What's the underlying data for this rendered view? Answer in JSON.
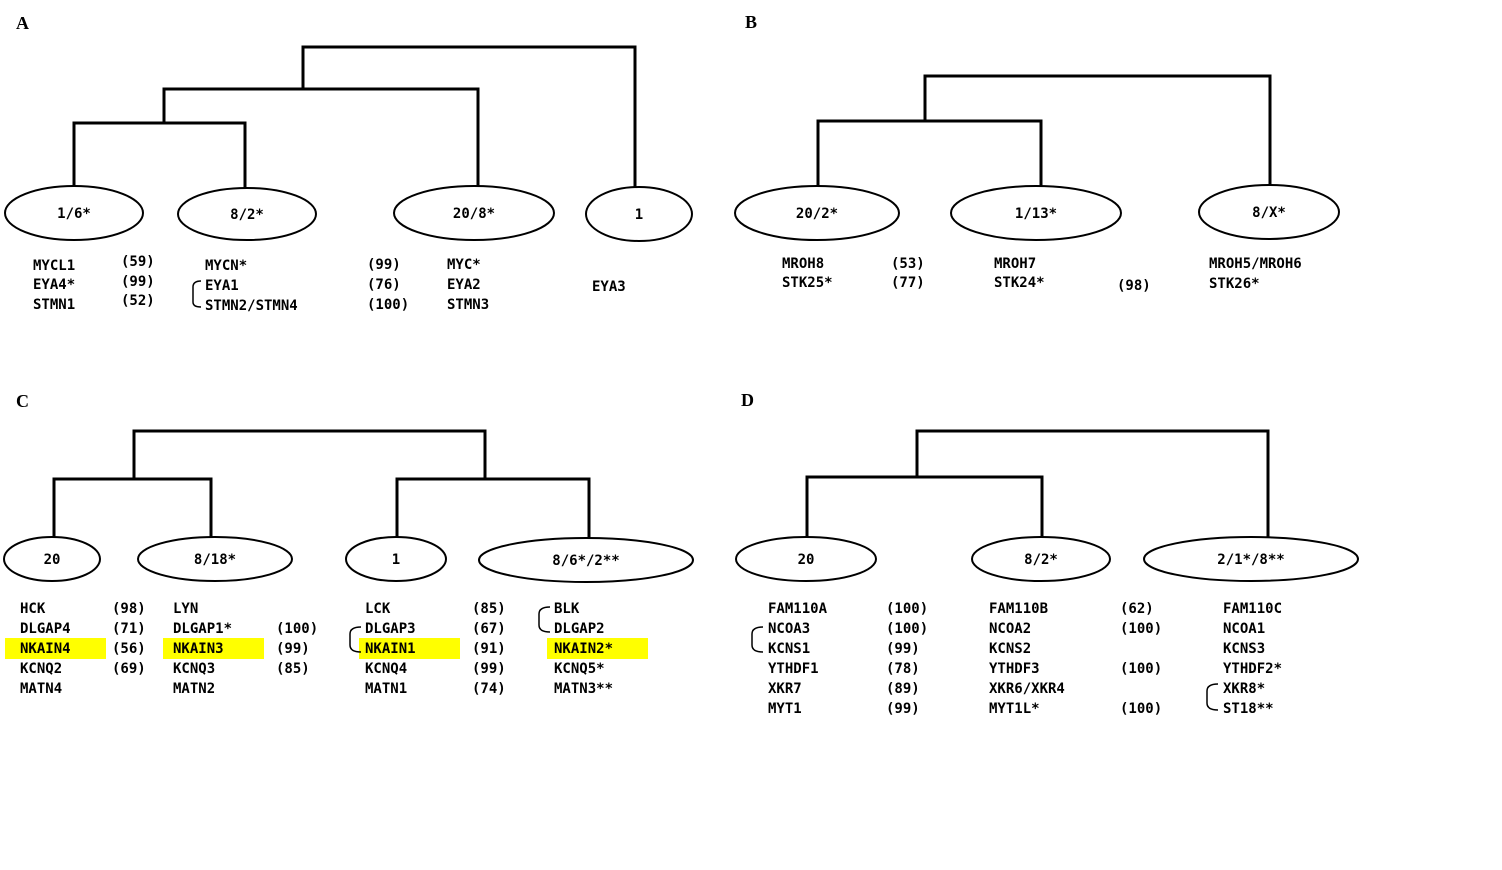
{
  "panels": {
    "A": {
      "letter": "A",
      "nodes": [
        "1/6*",
        "8/2*",
        "20/8*",
        "1"
      ],
      "genes": {
        "n1": [
          "MYCL1",
          "EYA4*",
          "STMN1"
        ],
        "n1_scores": [
          "(59)",
          "(99)",
          "(52)"
        ],
        "n2": [
          "MYCN*",
          "EYA1",
          "STMN2/STMN4"
        ],
        "n2_scores": [
          "(99)",
          "(76)",
          "(100)"
        ],
        "n3": [
          "MYC*",
          "EYA2",
          "STMN3"
        ],
        "n4": [
          "EYA3"
        ]
      }
    },
    "B": {
      "letter": "B",
      "nodes": [
        "20/2*",
        "1/13*",
        "8/X*"
      ],
      "genes": {
        "n1": [
          "MROH8",
          "STK25*"
        ],
        "n1_scores": [
          "(53)",
          "(77)"
        ],
        "n2": [
          "MROH7",
          "STK24*"
        ],
        "n2_scores": [
          "(98)"
        ],
        "n3": [
          "MROH5/MROH6",
          "STK26*"
        ]
      }
    },
    "C": {
      "letter": "C",
      "nodes": [
        "20",
        "8/18*",
        "1",
        "8/6*/2**"
      ],
      "genes": {
        "n1": [
          "HCK",
          "DLGAP4",
          "NKAIN4",
          "KCNQ2",
          "MATN4"
        ],
        "n1_scores": [
          "(98)",
          "(71)",
          "(56)",
          "(69)"
        ],
        "n2": [
          "LYN",
          "DLGAP1*",
          "NKAIN3",
          "KCNQ3",
          "MATN2"
        ],
        "n2_scores": [
          "(100)",
          "(99)",
          "(85)"
        ],
        "n3": [
          "LCK",
          "DLGAP3",
          "NKAIN1",
          "KCNQ4",
          "MATN1"
        ],
        "n3_scores": [
          "(85)",
          "(67)",
          "(91)",
          "(99)",
          "(74)"
        ],
        "n4": [
          "BLK",
          "DLGAP2",
          "NKAIN2*",
          "KCNQ5*",
          "MATN3**"
        ]
      }
    },
    "D": {
      "letter": "D",
      "nodes": [
        "20",
        "8/2*",
        "2/1*/8**"
      ],
      "genes": {
        "n1": [
          "FAM110A",
          "NCOA3",
          "KCNS1",
          "YTHDF1",
          "XKR7",
          "MYT1"
        ],
        "n1_scores": [
          "(100)",
          "(100)",
          "(99)",
          "(78)",
          "(89)",
          "(99)"
        ],
        "n2": [
          "FAM110B",
          "NCOA2",
          "KCNS2",
          "YTHDF3",
          "XKR6/XKR4",
          "MYT1L*"
        ],
        "n2_scores": [
          "(62)",
          "(100)",
          "(100)",
          "(100)"
        ],
        "n3": [
          "FAM110C",
          "NCOA1",
          "KCNS3",
          "YTHDF2*",
          "XKR8*",
          "ST18**"
        ]
      }
    }
  },
  "colors": {
    "highlight": "#ffff00",
    "line": "#000000",
    "background": "#ffffff"
  }
}
